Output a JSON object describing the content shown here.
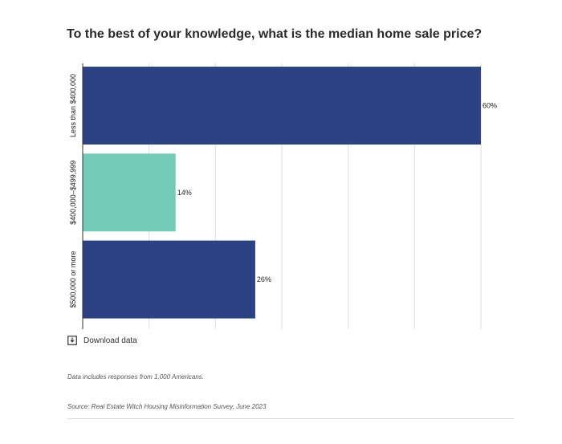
{
  "chart_data": {
    "type": "bar",
    "orientation": "horizontal",
    "title": "To the best of your knowledge, what is the median home sale price?",
    "categories": [
      "Less than $400,000",
      "$400,000–$499,999",
      "$500,000 or more"
    ],
    "values": [
      60,
      14,
      26
    ],
    "value_labels": [
      "60%",
      "14%",
      "26%"
    ],
    "unit": "%",
    "xlim": [
      0,
      60
    ],
    "gridlines": [
      0,
      10,
      20,
      30,
      40,
      50,
      60
    ],
    "grid": true,
    "legend": "none",
    "colors": [
      "#2d4282",
      "#74cbb7",
      "#2d4282"
    ]
  },
  "download": {
    "label": "Download data",
    "icon": "download-icon"
  },
  "note": "Data includes responses from 1,000 Americans.",
  "source": "Source: Real Estate Witch Housing Misinformation Survey, June 2023"
}
